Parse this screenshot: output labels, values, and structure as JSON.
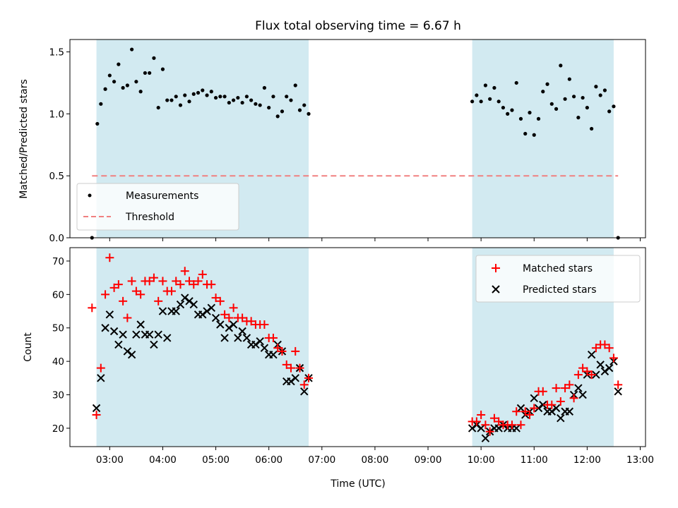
{
  "chart_data": {
    "title": "Flux total observing time = 6.67 h",
    "xlabel": "Time (UTC)",
    "x_ticks": [
      "03:00",
      "04:00",
      "05:00",
      "06:00",
      "07:00",
      "08:00",
      "09:00",
      "10:00",
      "11:00",
      "12:00",
      "13:00"
    ],
    "xlim": [
      "02:15",
      "13:06"
    ],
    "observing_windows": [
      [
        "02:45",
        "06:45"
      ],
      [
        "09:50",
        "12:30"
      ]
    ],
    "colors": {
      "window": "#add8e6",
      "matched": "#ff0000",
      "predicted": "#000000",
      "threshold": "#f08080",
      "measurement": "#000000"
    },
    "panels": [
      {
        "type": "scatter",
        "ylabel": "Matched/Predicted stars",
        "ylim": [
          0,
          1.6
        ],
        "y_ticks": [
          "0.0",
          "0.5",
          "1.0",
          "1.5"
        ],
        "legend_position": "lower-left",
        "series": [
          {
            "name": "Measurements",
            "marker": "dot",
            "x": [
              "02:40",
              "02:46",
              "02:50",
              "02:55",
              "03:00",
              "03:05",
              "03:10",
              "03:15",
              "03:20",
              "03:25",
              "03:30",
              "03:35",
              "03:40",
              "03:45",
              "03:50",
              "03:55",
              "04:00",
              "04:05",
              "04:10",
              "04:15",
              "04:20",
              "04:25",
              "04:30",
              "04:35",
              "04:40",
              "04:45",
              "04:50",
              "04:55",
              "05:00",
              "05:05",
              "05:10",
              "05:15",
              "05:20",
              "05:25",
              "05:30",
              "05:35",
              "05:40",
              "05:45",
              "05:50",
              "05:55",
              "06:00",
              "06:05",
              "06:10",
              "06:15",
              "06:20",
              "06:25",
              "06:30",
              "06:35",
              "06:40",
              "06:45",
              "09:50",
              "09:55",
              "10:00",
              "10:05",
              "10:10",
              "10:15",
              "10:20",
              "10:25",
              "10:30",
              "10:35",
              "10:40",
              "10:45",
              "10:50",
              "10:55",
              "11:00",
              "11:05",
              "11:10",
              "11:15",
              "11:20",
              "11:25",
              "11:30",
              "11:35",
              "11:40",
              "11:45",
              "11:50",
              "11:55",
              "12:00",
              "12:05",
              "12:10",
              "12:15",
              "12:20",
              "12:25",
              "12:30",
              "12:35"
            ],
            "y": [
              0.0,
              0.92,
              1.08,
              1.2,
              1.31,
              1.26,
              1.4,
              1.21,
              1.23,
              1.52,
              1.26,
              1.18,
              1.33,
              1.33,
              1.45,
              1.05,
              1.36,
              1.11,
              1.11,
              1.14,
              1.07,
              1.15,
              1.1,
              1.16,
              1.17,
              1.19,
              1.15,
              1.18,
              1.13,
              1.14,
              1.14,
              1.09,
              1.11,
              1.13,
              1.09,
              1.14,
              1.11,
              1.08,
              1.07,
              1.21,
              1.05,
              1.14,
              0.98,
              1.02,
              1.14,
              1.11,
              1.23,
              1.03,
              1.07,
              1.0,
              1.1,
              1.15,
              1.1,
              1.23,
              1.12,
              1.21,
              1.1,
              1.05,
              1.0,
              1.03,
              1.25,
              0.96,
              0.84,
              1.01,
              0.83,
              0.96,
              1.18,
              1.24,
              1.08,
              1.04,
              1.39,
              1.12,
              1.28,
              1.14,
              0.97,
              1.13,
              1.05,
              0.88,
              1.22,
              1.15,
              1.19,
              1.02,
              1.06,
              0.0
            ]
          },
          {
            "name": "Threshold",
            "marker": "dashed-line",
            "x": [
              "02:40",
              "12:35"
            ],
            "y": [
              0.5,
              0.5
            ]
          }
        ]
      },
      {
        "type": "scatter",
        "ylabel": "Count",
        "ylim": [
          14.5,
          74
        ],
        "y_ticks": [
          "20",
          "30",
          "40",
          "50",
          "60",
          "70"
        ],
        "legend_position": "upper-right",
        "series": [
          {
            "name": "Matched stars",
            "marker": "plus",
            "x": [
              "02:40",
              "02:45",
              "02:50",
              "02:55",
              "03:00",
              "03:05",
              "03:10",
              "03:15",
              "03:20",
              "03:25",
              "03:30",
              "03:35",
              "03:40",
              "03:45",
              "03:50",
              "03:55",
              "04:00",
              "04:05",
              "04:10",
              "04:15",
              "04:20",
              "04:25",
              "04:30",
              "04:35",
              "04:40",
              "04:45",
              "04:50",
              "04:55",
              "05:00",
              "05:05",
              "05:10",
              "05:15",
              "05:20",
              "05:25",
              "05:30",
              "05:35",
              "05:40",
              "05:45",
              "05:50",
              "05:55",
              "06:00",
              "06:05",
              "06:10",
              "06:15",
              "06:20",
              "06:25",
              "06:30",
              "06:35",
              "06:40",
              "06:45",
              "09:50",
              "09:55",
              "10:00",
              "10:05",
              "10:10",
              "10:15",
              "10:20",
              "10:25",
              "10:30",
              "10:35",
              "10:40",
              "10:45",
              "10:50",
              "10:55",
              "11:00",
              "11:05",
              "11:10",
              "11:15",
              "11:20",
              "11:25",
              "11:30",
              "11:35",
              "11:40",
              "11:45",
              "11:50",
              "11:55",
              "12:00",
              "12:05",
              "12:10",
              "12:15",
              "12:20",
              "12:25",
              "12:30",
              "12:35"
            ],
            "y": [
              56,
              24,
              38,
              60,
              71,
              62,
              63,
              58,
              53,
              64,
              61,
              60,
              64,
              64,
              65,
              58,
              64,
              61,
              61,
              64,
              63,
              67,
              64,
              63,
              64,
              66,
              63,
              63,
              59,
              58,
              54,
              53,
              56,
              53,
              53,
              52,
              52,
              51,
              51,
              51,
              47,
              47,
              44,
              43,
              39,
              38,
              43,
              38,
              33,
              35,
              22,
              22,
              24,
              21,
              19,
              23,
              22,
              21,
              21,
              21,
              25,
              21,
              25,
              24,
              26,
              31,
              31,
              27,
              27,
              32,
              28,
              32,
              33,
              29,
              36,
              38,
              37,
              36,
              44,
              45,
              45,
              44,
              41,
              33
            ]
          },
          {
            "name": "Predicted stars",
            "marker": "x",
            "x": [
              "02:45",
              "02:50",
              "02:55",
              "03:00",
              "03:05",
              "03:10",
              "03:15",
              "03:20",
              "03:25",
              "03:30",
              "03:35",
              "03:40",
              "03:45",
              "03:50",
              "03:55",
              "04:00",
              "04:05",
              "04:10",
              "04:15",
              "04:20",
              "04:25",
              "04:30",
              "04:35",
              "04:40",
              "04:45",
              "04:50",
              "04:55",
              "05:00",
              "05:05",
              "05:10",
              "05:15",
              "05:20",
              "05:25",
              "05:30",
              "05:35",
              "05:40",
              "05:45",
              "05:50",
              "05:55",
              "06:00",
              "06:05",
              "06:10",
              "06:15",
              "06:20",
              "06:25",
              "06:30",
              "06:35",
              "06:40",
              "06:45",
              "09:50",
              "09:55",
              "10:00",
              "10:05",
              "10:10",
              "10:15",
              "10:20",
              "10:25",
              "10:30",
              "10:35",
              "10:40",
              "10:45",
              "10:50",
              "10:55",
              "11:00",
              "11:05",
              "11:10",
              "11:15",
              "11:20",
              "11:25",
              "11:30",
              "11:35",
              "11:40",
              "11:45",
              "11:50",
              "11:55",
              "12:00",
              "12:05",
              "12:10",
              "12:15",
              "12:20",
              "12:25",
              "12:30",
              "12:35"
            ],
            "y": [
              26,
              35,
              50,
              54,
              49,
              45,
              48,
              43,
              42,
              48,
              51,
              48,
              48,
              45,
              48,
              55,
              47,
              55,
              55,
              57,
              59,
              58,
              57,
              54,
              54,
              55,
              56,
              53,
              51,
              47,
              50,
              51,
              47,
              49,
              47,
              45,
              45,
              46,
              44,
              42,
              42,
              45,
              43,
              34,
              34,
              35,
              38,
              31,
              35,
              20,
              21,
              20,
              17,
              19,
              20,
              20,
              21,
              20,
              20,
              20,
              26,
              24,
              25,
              29,
              26,
              27,
              25,
              25,
              26,
              23,
              25,
              25,
              30,
              32,
              30,
              36,
              42,
              36,
              39,
              37,
              38,
              40,
              31
            ]
          }
        ]
      }
    ]
  }
}
